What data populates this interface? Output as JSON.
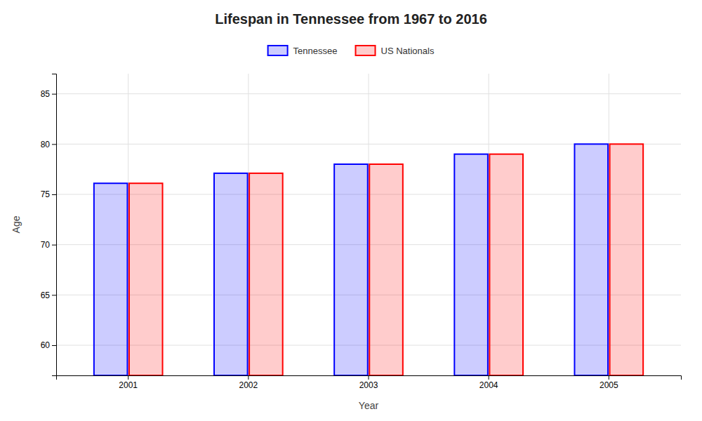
{
  "chart_data": {
    "type": "bar",
    "title": "Lifespan in Tennessee from 1967 to 2016",
    "xlabel": "Year",
    "ylabel": "Age",
    "categories": [
      "2001",
      "2002",
      "2003",
      "2004",
      "2005"
    ],
    "series": [
      {
        "name": "Tennessee",
        "color": "#0000ff",
        "values": [
          76.1,
          77.1,
          78.0,
          79.0,
          80.0
        ]
      },
      {
        "name": "US Nationals",
        "color": "#ff0000",
        "values": [
          76.1,
          77.1,
          78.0,
          79.0,
          80.0
        ]
      }
    ],
    "ylim": [
      57,
      87
    ],
    "yticks": [
      60,
      65,
      70,
      75,
      80,
      85
    ],
    "grid": true,
    "legend": "top"
  }
}
